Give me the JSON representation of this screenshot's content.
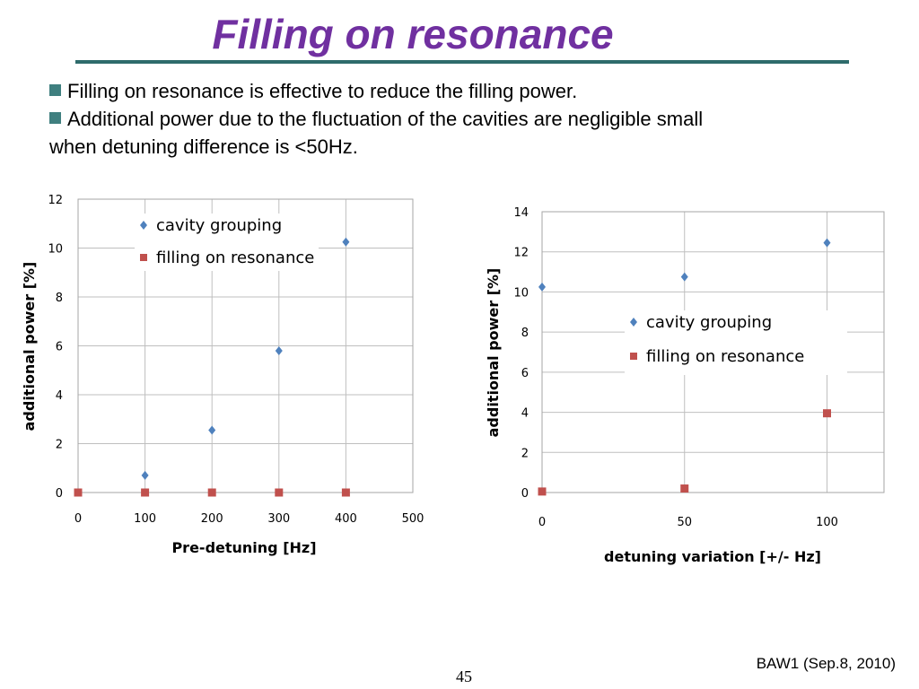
{
  "slide": {
    "title": "Filling on resonance",
    "bullets": [
      "Filling on resonance is effective to reduce the filling power.",
      "Additional power due to the fluctuation of the cavities are negligible small",
      "when detuning difference is <50Hz."
    ],
    "footer": "BAW1 (Sep.8, 2010)",
    "page_number": "45"
  },
  "colors": {
    "title": "#7030A0",
    "rule": "#2E6B6B",
    "bullet": "#3F7F7F",
    "series_cavity": "#4F81BD",
    "series_filling": "#C0504D",
    "grid": "#BFBFBF"
  },
  "chart_data": [
    {
      "type": "scatter",
      "xlabel": "Pre-detuning [Hz]",
      "ylabel": "additional power  [%]",
      "xlim": [
        0,
        500
      ],
      "ylim": [
        0,
        12
      ],
      "xticks": [
        0,
        100,
        200,
        300,
        400,
        500
      ],
      "yticks": [
        0,
        2,
        4,
        6,
        8,
        10,
        12
      ],
      "grid": true,
      "legend": "top-left",
      "series": [
        {
          "name": "cavity grouping",
          "marker": "diamond",
          "x": [
            100,
            200,
            300,
            400
          ],
          "y": [
            0.7,
            2.55,
            5.8,
            10.25
          ]
        },
        {
          "name": "filling on resonance",
          "marker": "square",
          "x": [
            0,
            100,
            200,
            300,
            400
          ],
          "y": [
            0,
            0,
            0,
            0,
            0
          ]
        }
      ]
    },
    {
      "type": "scatter",
      "xlabel": "detuning variation [+/- Hz]",
      "ylabel": "additional power  [%]",
      "xlim": [
        0,
        120
      ],
      "ylim": [
        0,
        14
      ],
      "xticks": [
        0,
        50,
        100
      ],
      "yticks": [
        0,
        2,
        4,
        6,
        8,
        10,
        12,
        14
      ],
      "grid": true,
      "legend": "center-right",
      "series": [
        {
          "name": "cavity grouping",
          "marker": "diamond",
          "x": [
            0,
            50,
            100
          ],
          "y": [
            10.25,
            10.75,
            12.45
          ]
        },
        {
          "name": "filling on resonance",
          "marker": "square",
          "x": [
            0,
            50,
            100
          ],
          "y": [
            0.05,
            0.2,
            3.95
          ]
        }
      ]
    }
  ]
}
